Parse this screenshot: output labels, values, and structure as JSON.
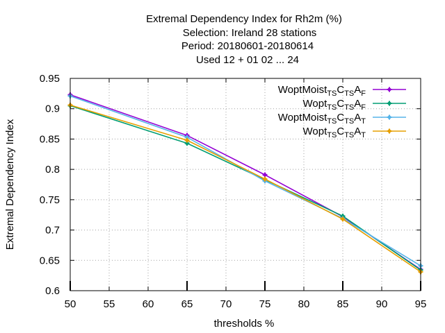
{
  "chart_data": {
    "type": "line",
    "title_lines": [
      "Extremal Dependency Index  for Rh2m (%)",
      "Selection: Ireland     28 stations",
      "Period: 20180601-20180614",
      "Used  12 + 01 02 ... 24"
    ],
    "xlabel": "thresholds %",
    "ylabel": "Extremal Dependency Index",
    "xlim": [
      50,
      95
    ],
    "ylim": [
      0.6,
      0.95
    ],
    "xticks": [
      "50",
      "55",
      "60",
      "65",
      "70",
      "75",
      "80",
      "85",
      "90",
      "95"
    ],
    "yticks": [
      "0.6",
      "0.65",
      "0.7",
      "0.75",
      "0.8",
      "0.85",
      "0.9",
      "0.95"
    ],
    "grid": true,
    "legend_position": "top-right",
    "x": [
      50,
      65,
      75,
      85,
      95
    ],
    "series": [
      {
        "name_parts": [
          [
            "WoptMoist",
            "n"
          ],
          [
            "TS",
            "s"
          ],
          [
            "C",
            "n"
          ],
          [
            "TS",
            "s"
          ],
          [
            "A",
            "n"
          ],
          [
            "F",
            "s"
          ]
        ],
        "color": "#9400d3",
        "values": [
          0.923,
          0.856,
          0.791,
          0.722,
          0.635
        ]
      },
      {
        "name_parts": [
          [
            "Wopt",
            "n"
          ],
          [
            "TS",
            "s"
          ],
          [
            "C",
            "n"
          ],
          [
            "TS",
            "s"
          ],
          [
            "A",
            "n"
          ],
          [
            "F",
            "s"
          ]
        ],
        "color": "#009e73",
        "values": [
          0.905,
          0.843,
          0.783,
          0.723,
          0.634
        ]
      },
      {
        "name_parts": [
          [
            "WoptMoist",
            "n"
          ],
          [
            "TS",
            "s"
          ],
          [
            "C",
            "n"
          ],
          [
            "TS",
            "s"
          ],
          [
            "A",
            "n"
          ],
          [
            "T",
            "s"
          ]
        ],
        "color": "#56b4e9",
        "values": [
          0.921,
          0.853,
          0.781,
          0.719,
          0.641
        ]
      },
      {
        "name_parts": [
          [
            "Wopt",
            "n"
          ],
          [
            "TS",
            "s"
          ],
          [
            "C",
            "n"
          ],
          [
            "TS",
            "s"
          ],
          [
            "A",
            "n"
          ],
          [
            "T",
            "s"
          ]
        ],
        "color": "#e69f00",
        "values": [
          0.906,
          0.848,
          0.784,
          0.718,
          0.631
        ]
      }
    ]
  }
}
